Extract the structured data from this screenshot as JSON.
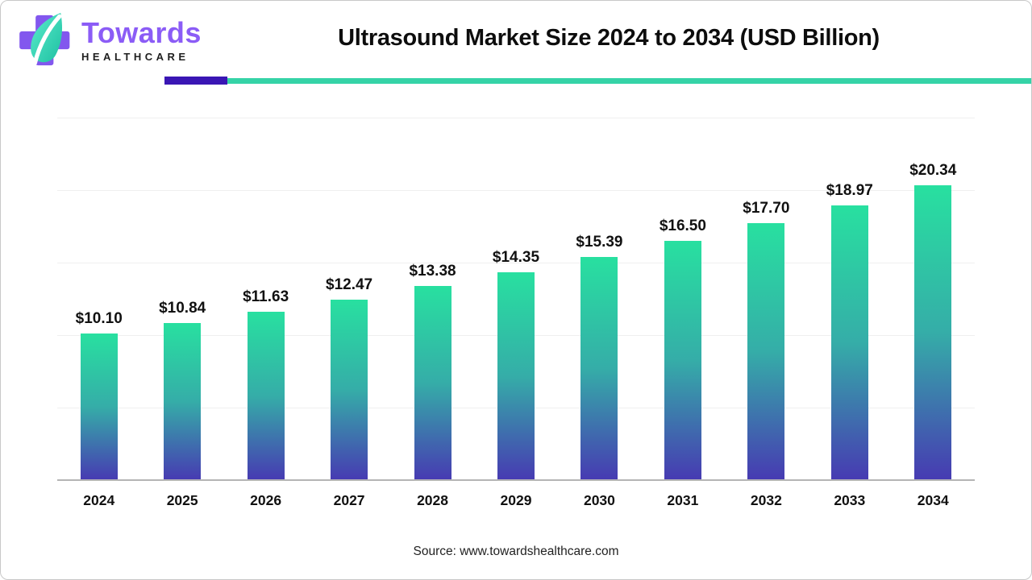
{
  "header": {
    "logo": {
      "brand": "Towards",
      "sub": "HEALTHCARE"
    },
    "title": "Ultrasound Market Size 2024 to 2034 (USD Billion)"
  },
  "chart_data": {
    "type": "bar",
    "title": "Ultrasound Market Size 2024 to 2034 (USD Billion)",
    "categories": [
      "2024",
      "2025",
      "2026",
      "2027",
      "2028",
      "2029",
      "2030",
      "2031",
      "2032",
      "2033",
      "2034"
    ],
    "values": [
      10.1,
      10.84,
      11.63,
      12.47,
      13.38,
      14.35,
      15.39,
      16.5,
      17.7,
      18.97,
      20.34
    ],
    "value_labels": [
      "$10.10",
      "$10.84",
      "$11.63",
      "$12.47",
      "$13.38",
      "$14.35",
      "$15.39",
      "$16.50",
      "$17.70",
      "$18.97",
      "$20.34"
    ],
    "xlabel": "",
    "ylabel": "",
    "ylim": [
      0,
      25
    ],
    "grid": true,
    "gridline_step": 5,
    "legend": "none",
    "bar_gradient_top": "#28e0a0",
    "bar_gradient_mid": "#35ada8",
    "bar_gradient_bottom": "#473ab2"
  },
  "footer": {
    "source": "Source: www.towardshealthcare.com"
  },
  "colors": {
    "divider_purple": "#3a16b4",
    "divider_teal": "#35d3a7",
    "brand_purple": "#8b5cf6",
    "leaf_teal_light": "#5beccb",
    "leaf_teal_dark": "#1ec0a2",
    "axis": "#b5b5b5",
    "grid": "#efefef"
  }
}
